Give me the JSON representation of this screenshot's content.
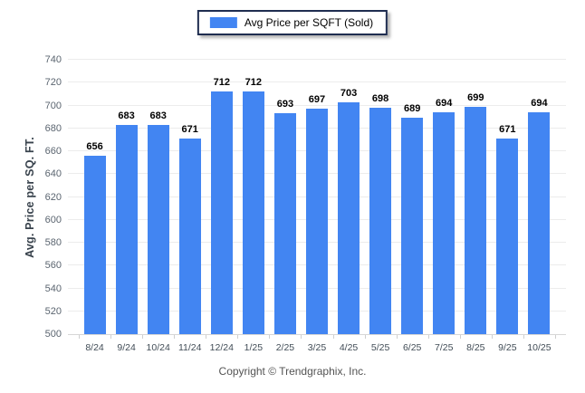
{
  "chart_data": {
    "type": "bar",
    "title": "Avg Price per SQFT (Sold)",
    "legend": "Avg Price per SQFT (Sold)",
    "legend_position": "top-center",
    "xlabel": "",
    "ylabel": "Avg. Price per SQ. FT.",
    "ylim": [
      500,
      740
    ],
    "ytick_step": 20,
    "grid": true,
    "bar_color": "#4285f2",
    "categories": [
      "8/24",
      "9/24",
      "10/24",
      "11/24",
      "12/24",
      "1/25",
      "2/25",
      "3/25",
      "4/25",
      "5/25",
      "6/25",
      "7/25",
      "8/25",
      "9/25",
      "10/25"
    ],
    "values": [
      656,
      683,
      683,
      671,
      712,
      712,
      693,
      697,
      703,
      698,
      689,
      694,
      699,
      671,
      694
    ]
  },
  "footer": {
    "copyright": "Copyright © Trendgraphix, Inc."
  }
}
